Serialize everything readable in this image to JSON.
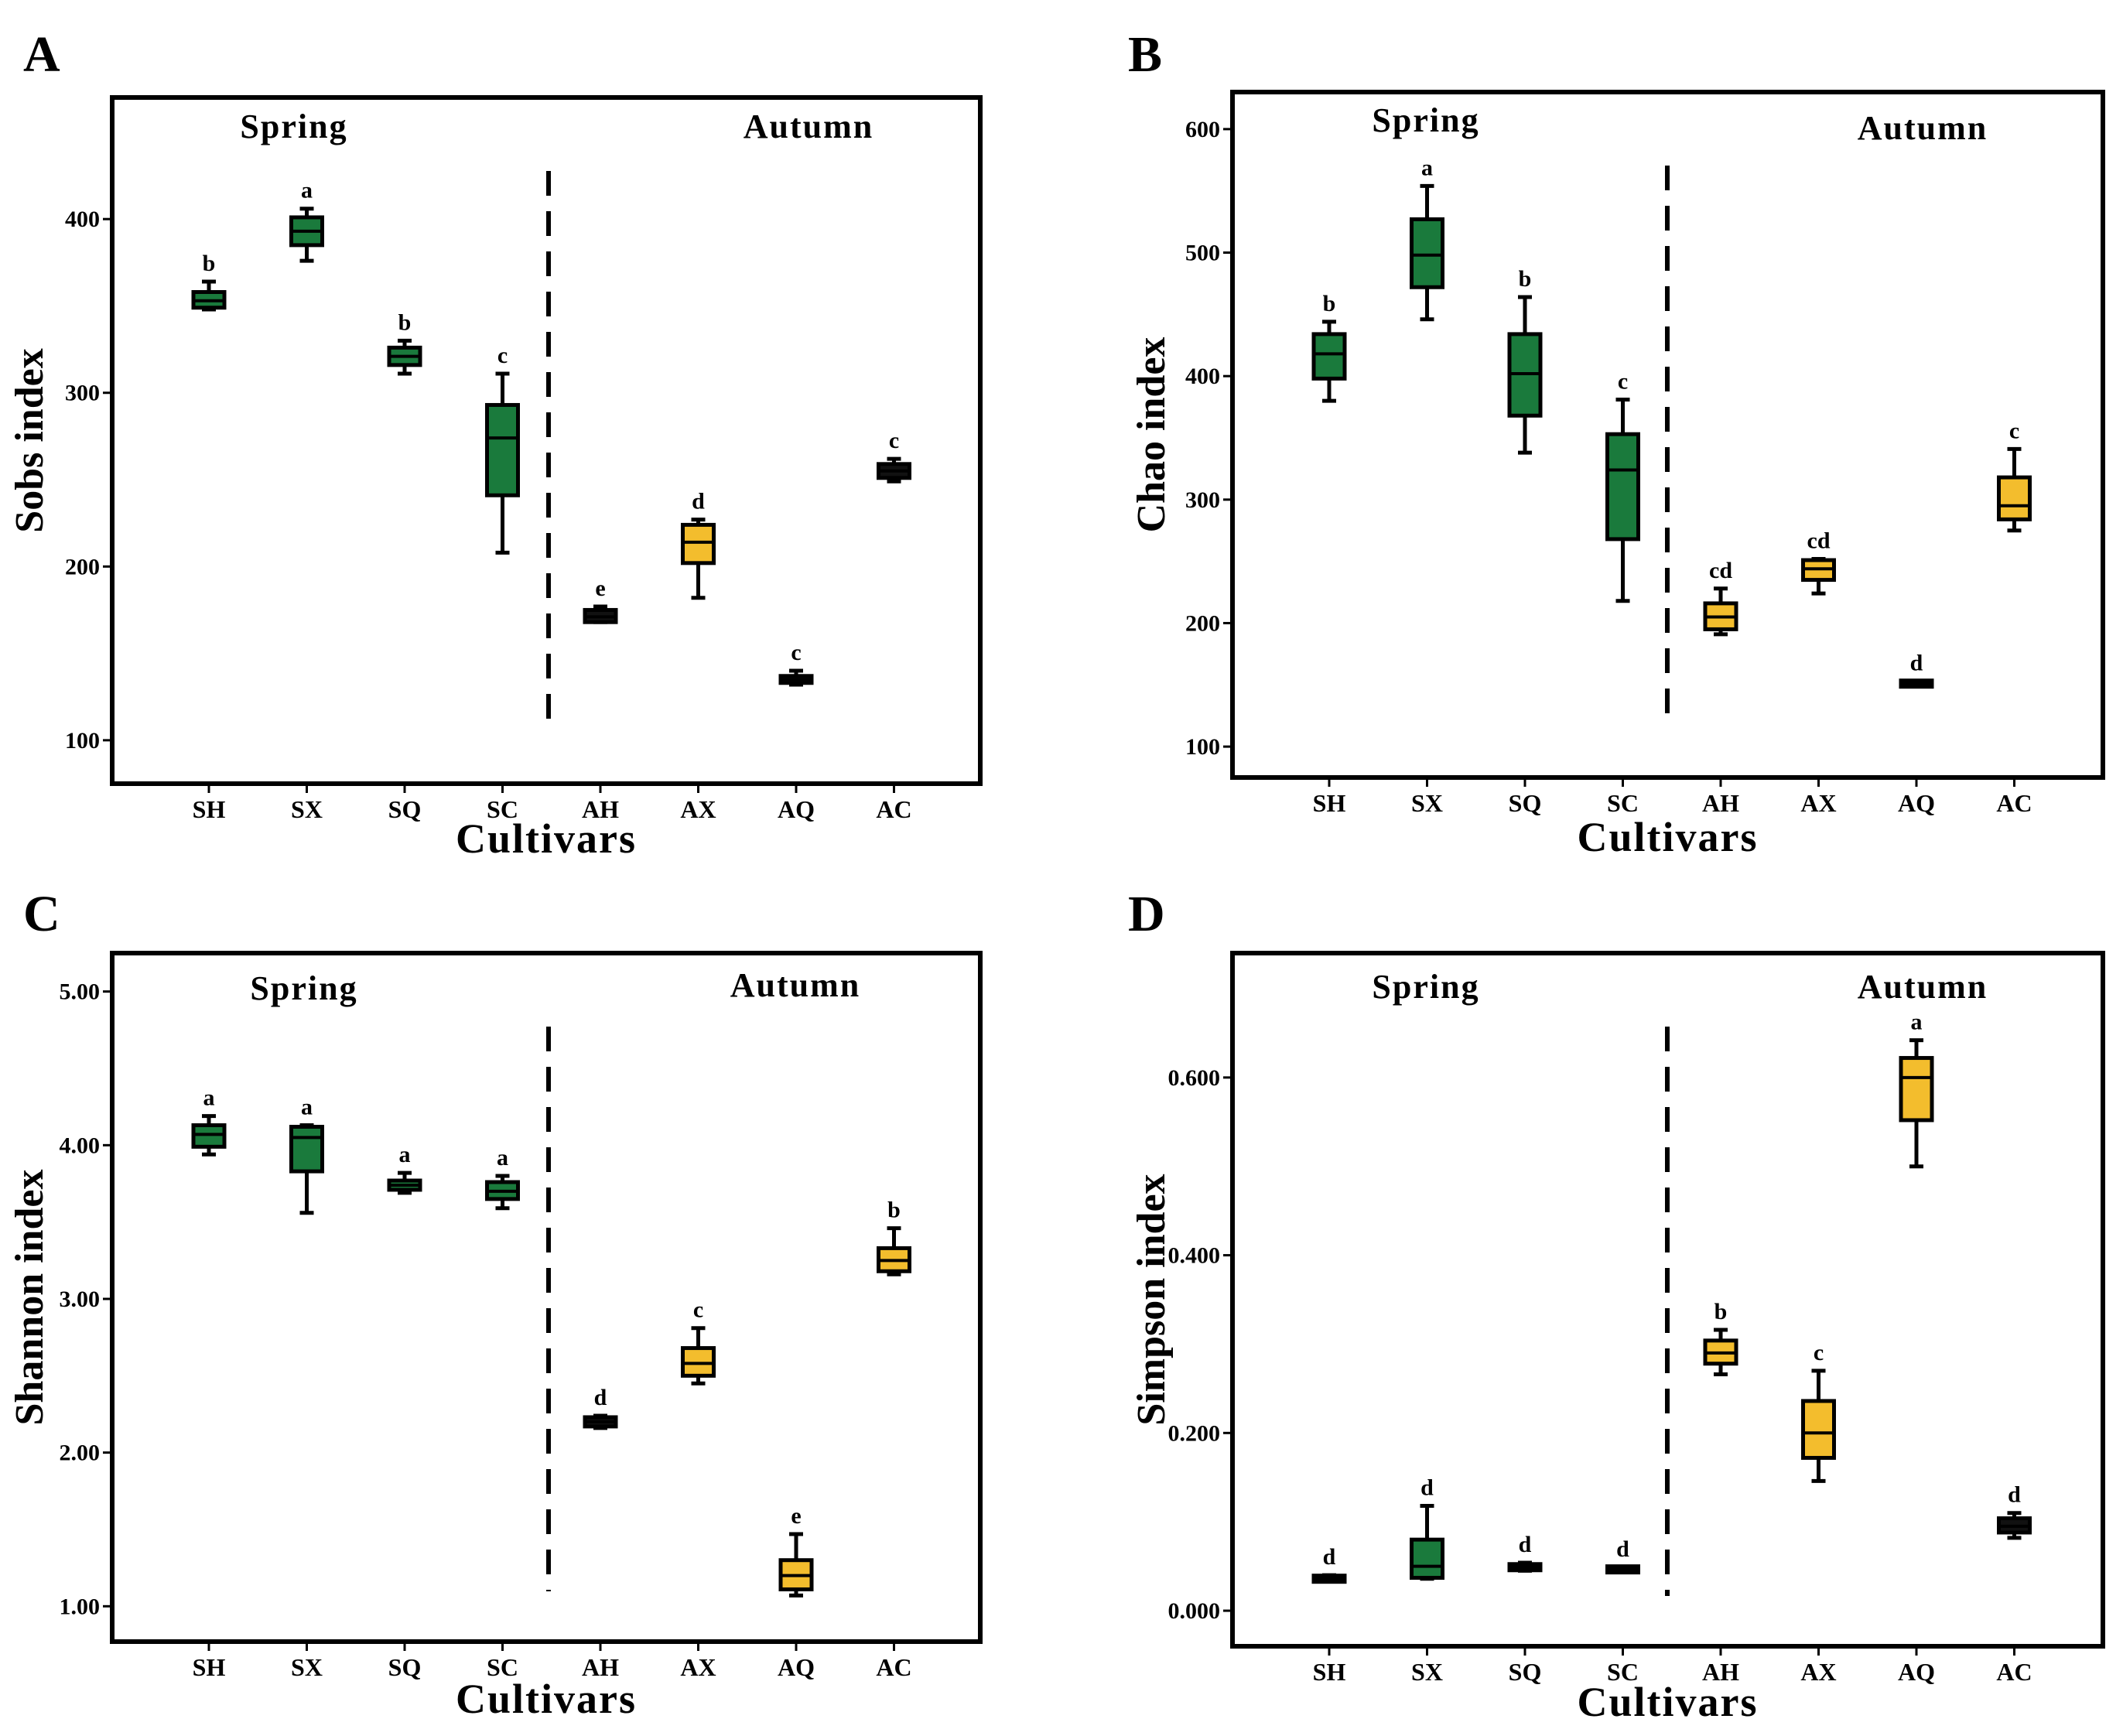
{
  "colors": {
    "spring": "#1a7a3c",
    "autumn": "#f3bd2d",
    "dark": "#111111",
    "frame": "#000000"
  },
  "chart_data": [
    {
      "panel": "A",
      "type": "box",
      "ylabel": "Sobs index",
      "xlabel": "Cultivars",
      "season_labels": [
        "Spring",
        "Autumn"
      ],
      "ylim": [
        75,
        470
      ],
      "yticks": [
        100,
        200,
        300,
        400
      ],
      "tick_format": "int",
      "categories": [
        "SH",
        "SX",
        "SQ",
        "SC",
        "AH",
        "AX",
        "AQ",
        "AC"
      ],
      "boxes": [
        {
          "min": 348,
          "q1": 349,
          "median": 353,
          "q3": 358,
          "max": 364,
          "letter": "b",
          "fill": "spring"
        },
        {
          "min": 376,
          "q1": 385,
          "median": 393,
          "q3": 401,
          "max": 406,
          "letter": "a",
          "fill": "spring"
        },
        {
          "min": 311,
          "q1": 316,
          "median": 321,
          "q3": 326,
          "max": 330,
          "letter": "b",
          "fill": "spring"
        },
        {
          "min": 208,
          "q1": 241,
          "median": 274,
          "q3": 293,
          "max": 311,
          "letter": "c",
          "fill": "spring"
        },
        {
          "min": 168,
          "q1": 168,
          "median": 171,
          "q3": 175,
          "max": 177,
          "letter": "e",
          "fill": "dark"
        },
        {
          "min": 182,
          "q1": 202,
          "median": 214,
          "q3": 224,
          "max": 227,
          "letter": "d",
          "fill": "autumn"
        },
        {
          "min": 132,
          "q1": 133,
          "median": 135,
          "q3": 137,
          "max": 140,
          "letter": "c",
          "fill": "dark"
        },
        {
          "min": 249,
          "q1": 251,
          "median": 255,
          "q3": 259,
          "max": 262,
          "letter": "c",
          "fill": "dark"
        }
      ]
    },
    {
      "panel": "B",
      "type": "box",
      "ylabel": "Chao index",
      "xlabel": "Cultivars",
      "season_labels": [
        "Spring",
        "Autumn"
      ],
      "ylim": [
        75,
        630
      ],
      "yticks": [
        100,
        200,
        300,
        400,
        500,
        600
      ],
      "tick_format": "int",
      "categories": [
        "SH",
        "SX",
        "SQ",
        "SC",
        "AH",
        "AX",
        "AQ",
        "AC"
      ],
      "boxes": [
        {
          "min": 380,
          "q1": 398,
          "median": 418,
          "q3": 434,
          "max": 444,
          "letter": "b",
          "fill": "spring"
        },
        {
          "min": 446,
          "q1": 472,
          "median": 498,
          "q3": 527,
          "max": 554,
          "letter": "a",
          "fill": "spring"
        },
        {
          "min": 338,
          "q1": 368,
          "median": 402,
          "q3": 434,
          "max": 464,
          "letter": "b",
          "fill": "spring"
        },
        {
          "min": 218,
          "q1": 268,
          "median": 324,
          "q3": 353,
          "max": 381,
          "letter": "c",
          "fill": "spring"
        },
        {
          "min": 191,
          "q1": 195,
          "median": 205,
          "q3": 216,
          "max": 228,
          "letter": "cd",
          "fill": "autumn"
        },
        {
          "min": 224,
          "q1": 235,
          "median": 244,
          "q3": 251,
          "max": 252,
          "letter": "cd",
          "fill": "autumn"
        },
        {
          "min": 150,
          "q1": 150,
          "median": 151,
          "q3": 152,
          "max": 153,
          "letter": "d",
          "fill": "dark"
        },
        {
          "min": 275,
          "q1": 284,
          "median": 295,
          "q3": 318,
          "max": 341,
          "letter": "c",
          "fill": "autumn"
        }
      ]
    },
    {
      "panel": "C",
      "type": "box",
      "ylabel": "Shannon index",
      "xlabel": "Cultivars",
      "season_labels": [
        "Spring",
        "Autumn"
      ],
      "ylim": [
        0.77,
        5.25
      ],
      "yticks": [
        1.0,
        2.0,
        3.0,
        4.0,
        5.0
      ],
      "tick_format": "2dp",
      "categories": [
        "SH",
        "SX",
        "SQ",
        "SC",
        "AH",
        "AX",
        "AQ",
        "AC"
      ],
      "boxes": [
        {
          "min": 3.94,
          "q1": 3.99,
          "median": 4.07,
          "q3": 4.13,
          "max": 4.19,
          "letter": "a",
          "fill": "spring"
        },
        {
          "min": 3.56,
          "q1": 3.83,
          "median": 4.05,
          "q3": 4.12,
          "max": 4.13,
          "letter": "a",
          "fill": "spring"
        },
        {
          "min": 3.69,
          "q1": 3.71,
          "median": 3.74,
          "q3": 3.77,
          "max": 3.82,
          "letter": "a",
          "fill": "spring"
        },
        {
          "min": 3.59,
          "q1": 3.65,
          "median": 3.7,
          "q3": 3.76,
          "max": 3.8,
          "letter": "a",
          "fill": "spring"
        },
        {
          "min": 2.16,
          "q1": 2.17,
          "median": 2.2,
          "q3": 2.23,
          "max": 2.24,
          "letter": "d",
          "fill": "dark"
        },
        {
          "min": 2.45,
          "q1": 2.5,
          "median": 2.58,
          "q3": 2.68,
          "max": 2.81,
          "letter": "c",
          "fill": "autumn"
        },
        {
          "min": 1.07,
          "q1": 1.11,
          "median": 1.2,
          "q3": 1.3,
          "max": 1.47,
          "letter": "e",
          "fill": "autumn"
        },
        {
          "min": 3.16,
          "q1": 3.18,
          "median": 3.25,
          "q3": 3.33,
          "max": 3.46,
          "letter": "b",
          "fill": "autumn"
        }
      ]
    },
    {
      "panel": "D",
      "type": "box",
      "ylabel": "Simpson index",
      "xlabel": "Cultivars",
      "season_labels": [
        "Spring",
        "Autumn"
      ],
      "ylim": [
        -0.04,
        0.74
      ],
      "yticks": [
        0.0,
        0.2,
        0.4,
        0.6
      ],
      "tick_format": "3dp",
      "categories": [
        "SH",
        "SX",
        "SQ",
        "SC",
        "AH",
        "AX",
        "AQ",
        "AC"
      ],
      "boxes": [
        {
          "min": 0.033,
          "q1": 0.034,
          "median": 0.036,
          "q3": 0.038,
          "max": 0.04,
          "letter": "d",
          "fill": "dark"
        },
        {
          "min": 0.036,
          "q1": 0.037,
          "median": 0.05,
          "q3": 0.08,
          "max": 0.118,
          "letter": "d",
          "fill": "spring"
        },
        {
          "min": 0.045,
          "q1": 0.046,
          "median": 0.049,
          "q3": 0.052,
          "max": 0.054,
          "letter": "d",
          "fill": "dark"
        },
        {
          "min": 0.045,
          "q1": 0.045,
          "median": 0.047,
          "q3": 0.048,
          "max": 0.049,
          "letter": "d",
          "fill": "dark"
        },
        {
          "min": 0.266,
          "q1": 0.278,
          "median": 0.29,
          "q3": 0.304,
          "max": 0.316,
          "letter": "b",
          "fill": "autumn"
        },
        {
          "min": 0.146,
          "q1": 0.172,
          "median": 0.2,
          "q3": 0.236,
          "max": 0.27,
          "letter": "c",
          "fill": "autumn"
        },
        {
          "min": 0.5,
          "q1": 0.552,
          "median": 0.6,
          "q3": 0.622,
          "max": 0.642,
          "letter": "a",
          "fill": "autumn"
        },
        {
          "min": 0.082,
          "q1": 0.088,
          "median": 0.095,
          "q3": 0.104,
          "max": 0.11,
          "letter": "d",
          "fill": "dark"
        }
      ]
    }
  ]
}
